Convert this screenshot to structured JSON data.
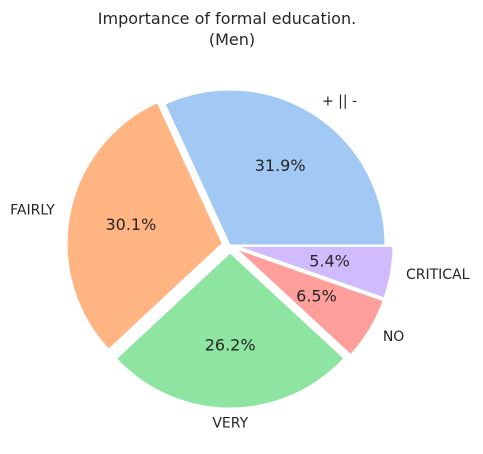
{
  "chart_data": {
    "type": "pie",
    "title": "Importance of formal education.",
    "subtitle": "(Men)",
    "slices": [
      {
        "label": "+ || -",
        "value": 31.9,
        "pct_label": "31.9%",
        "color": "#a1c9f4",
        "explode": false
      },
      {
        "label": "FAIRLY",
        "value": 30.1,
        "pct_label": "30.1%",
        "color": "#ffb482",
        "explode": true
      },
      {
        "label": "VERY",
        "value": 26.2,
        "pct_label": "26.2%",
        "color": "#8de5a1",
        "explode": true
      },
      {
        "label": "NO",
        "value": 6.5,
        "pct_label": "6.5%",
        "color": "#ff9f9b",
        "explode": true
      },
      {
        "label": "CRITICAL",
        "value": 5.4,
        "pct_label": "5.4%",
        "color": "#d0bbff",
        "explode": true
      }
    ],
    "start_angle": "0° (3 o'clock), counter-clockwise",
    "background": "#ffffff"
  }
}
